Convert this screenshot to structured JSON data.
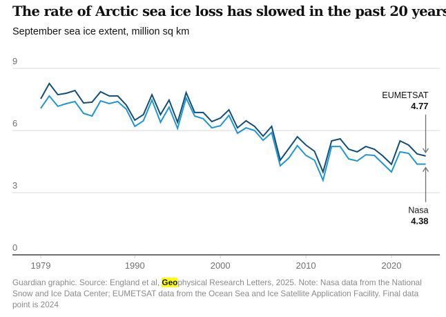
{
  "header": {
    "title": "The rate of Arctic sea ice loss has slowed in the past 20 years",
    "subtitle": "September sea ice extent, million sq km"
  },
  "footer": {
    "before_highlight": "Guardian graphic. Source: England et al, ",
    "highlight": "Geo",
    "after_highlight": "physical Research Letters, 2025. Note: Nasa data from the National Snow and Ice Data Center; EUMETSAT data from the Ocean Sea and Ice Satellite Application Facility. Final data point is 2024"
  },
  "colors": {
    "eumetsat": "#0f4d7a",
    "nasa": "#1b96d8",
    "grid": "#e6e6e6",
    "axis": "#707070",
    "highlight": "#ffff00"
  },
  "chart_data": {
    "type": "line",
    "title": "The rate of Arctic sea ice loss has slowed in the past 20 years",
    "subtitle": "September sea ice extent, million sq km",
    "xlabel": "",
    "ylabel": "September sea ice extent, million sq km",
    "ylim": [
      0,
      9
    ],
    "xlim": [
      1979,
      2024
    ],
    "yticks": [
      0,
      3,
      6,
      9
    ],
    "xticks": [
      1979,
      1990,
      2000,
      2010,
      2020
    ],
    "grid": true,
    "legend": "direct labels at right end",
    "x": [
      1979,
      1980,
      1981,
      1982,
      1983,
      1984,
      1985,
      1986,
      1987,
      1988,
      1989,
      1990,
      1991,
      1992,
      1993,
      1994,
      1995,
      1996,
      1997,
      1998,
      1999,
      2000,
      2001,
      2002,
      2003,
      2004,
      2005,
      2006,
      2007,
      2008,
      2009,
      2010,
      2011,
      2012,
      2013,
      2014,
      2015,
      2016,
      2017,
      2018,
      2019,
      2020,
      2021,
      2022,
      2023,
      2024
    ],
    "series": [
      {
        "name": "EUMETSAT",
        "values": [
          7.53,
          8.27,
          7.73,
          7.8,
          7.93,
          7.33,
          7.37,
          7.87,
          7.67,
          7.67,
          7.23,
          6.5,
          6.77,
          7.73,
          6.77,
          7.47,
          6.4,
          7.83,
          6.87,
          6.87,
          6.43,
          6.6,
          7.0,
          6.13,
          6.47,
          6.2,
          5.73,
          6.2,
          4.57,
          5.13,
          5.7,
          5.3,
          5.0,
          4.0,
          5.5,
          5.6,
          5.1,
          4.97,
          5.23,
          5.1,
          4.77,
          4.37,
          5.5,
          5.3,
          4.87,
          4.77
        ]
      },
      {
        "name": "Nasa",
        "values": [
          7.07,
          7.67,
          7.17,
          7.3,
          7.4,
          6.83,
          6.7,
          7.43,
          7.3,
          7.4,
          7.03,
          6.2,
          6.47,
          7.47,
          6.4,
          7.13,
          6.1,
          7.57,
          6.7,
          6.57,
          6.13,
          6.23,
          6.73,
          5.87,
          6.13,
          6.0,
          5.53,
          5.9,
          4.3,
          4.67,
          5.27,
          4.8,
          4.57,
          3.6,
          5.23,
          5.23,
          4.63,
          4.53,
          4.83,
          4.8,
          4.4,
          4.0,
          4.97,
          4.9,
          4.38,
          4.38
        ]
      }
    ],
    "annotations": [
      {
        "series": "EUMETSAT",
        "label": "EUMETSAT",
        "value": "4.77",
        "year": 2024,
        "position": "above"
      },
      {
        "series": "Nasa",
        "label": "Nasa",
        "value": "4.38",
        "year": 2024,
        "position": "below"
      }
    ]
  }
}
